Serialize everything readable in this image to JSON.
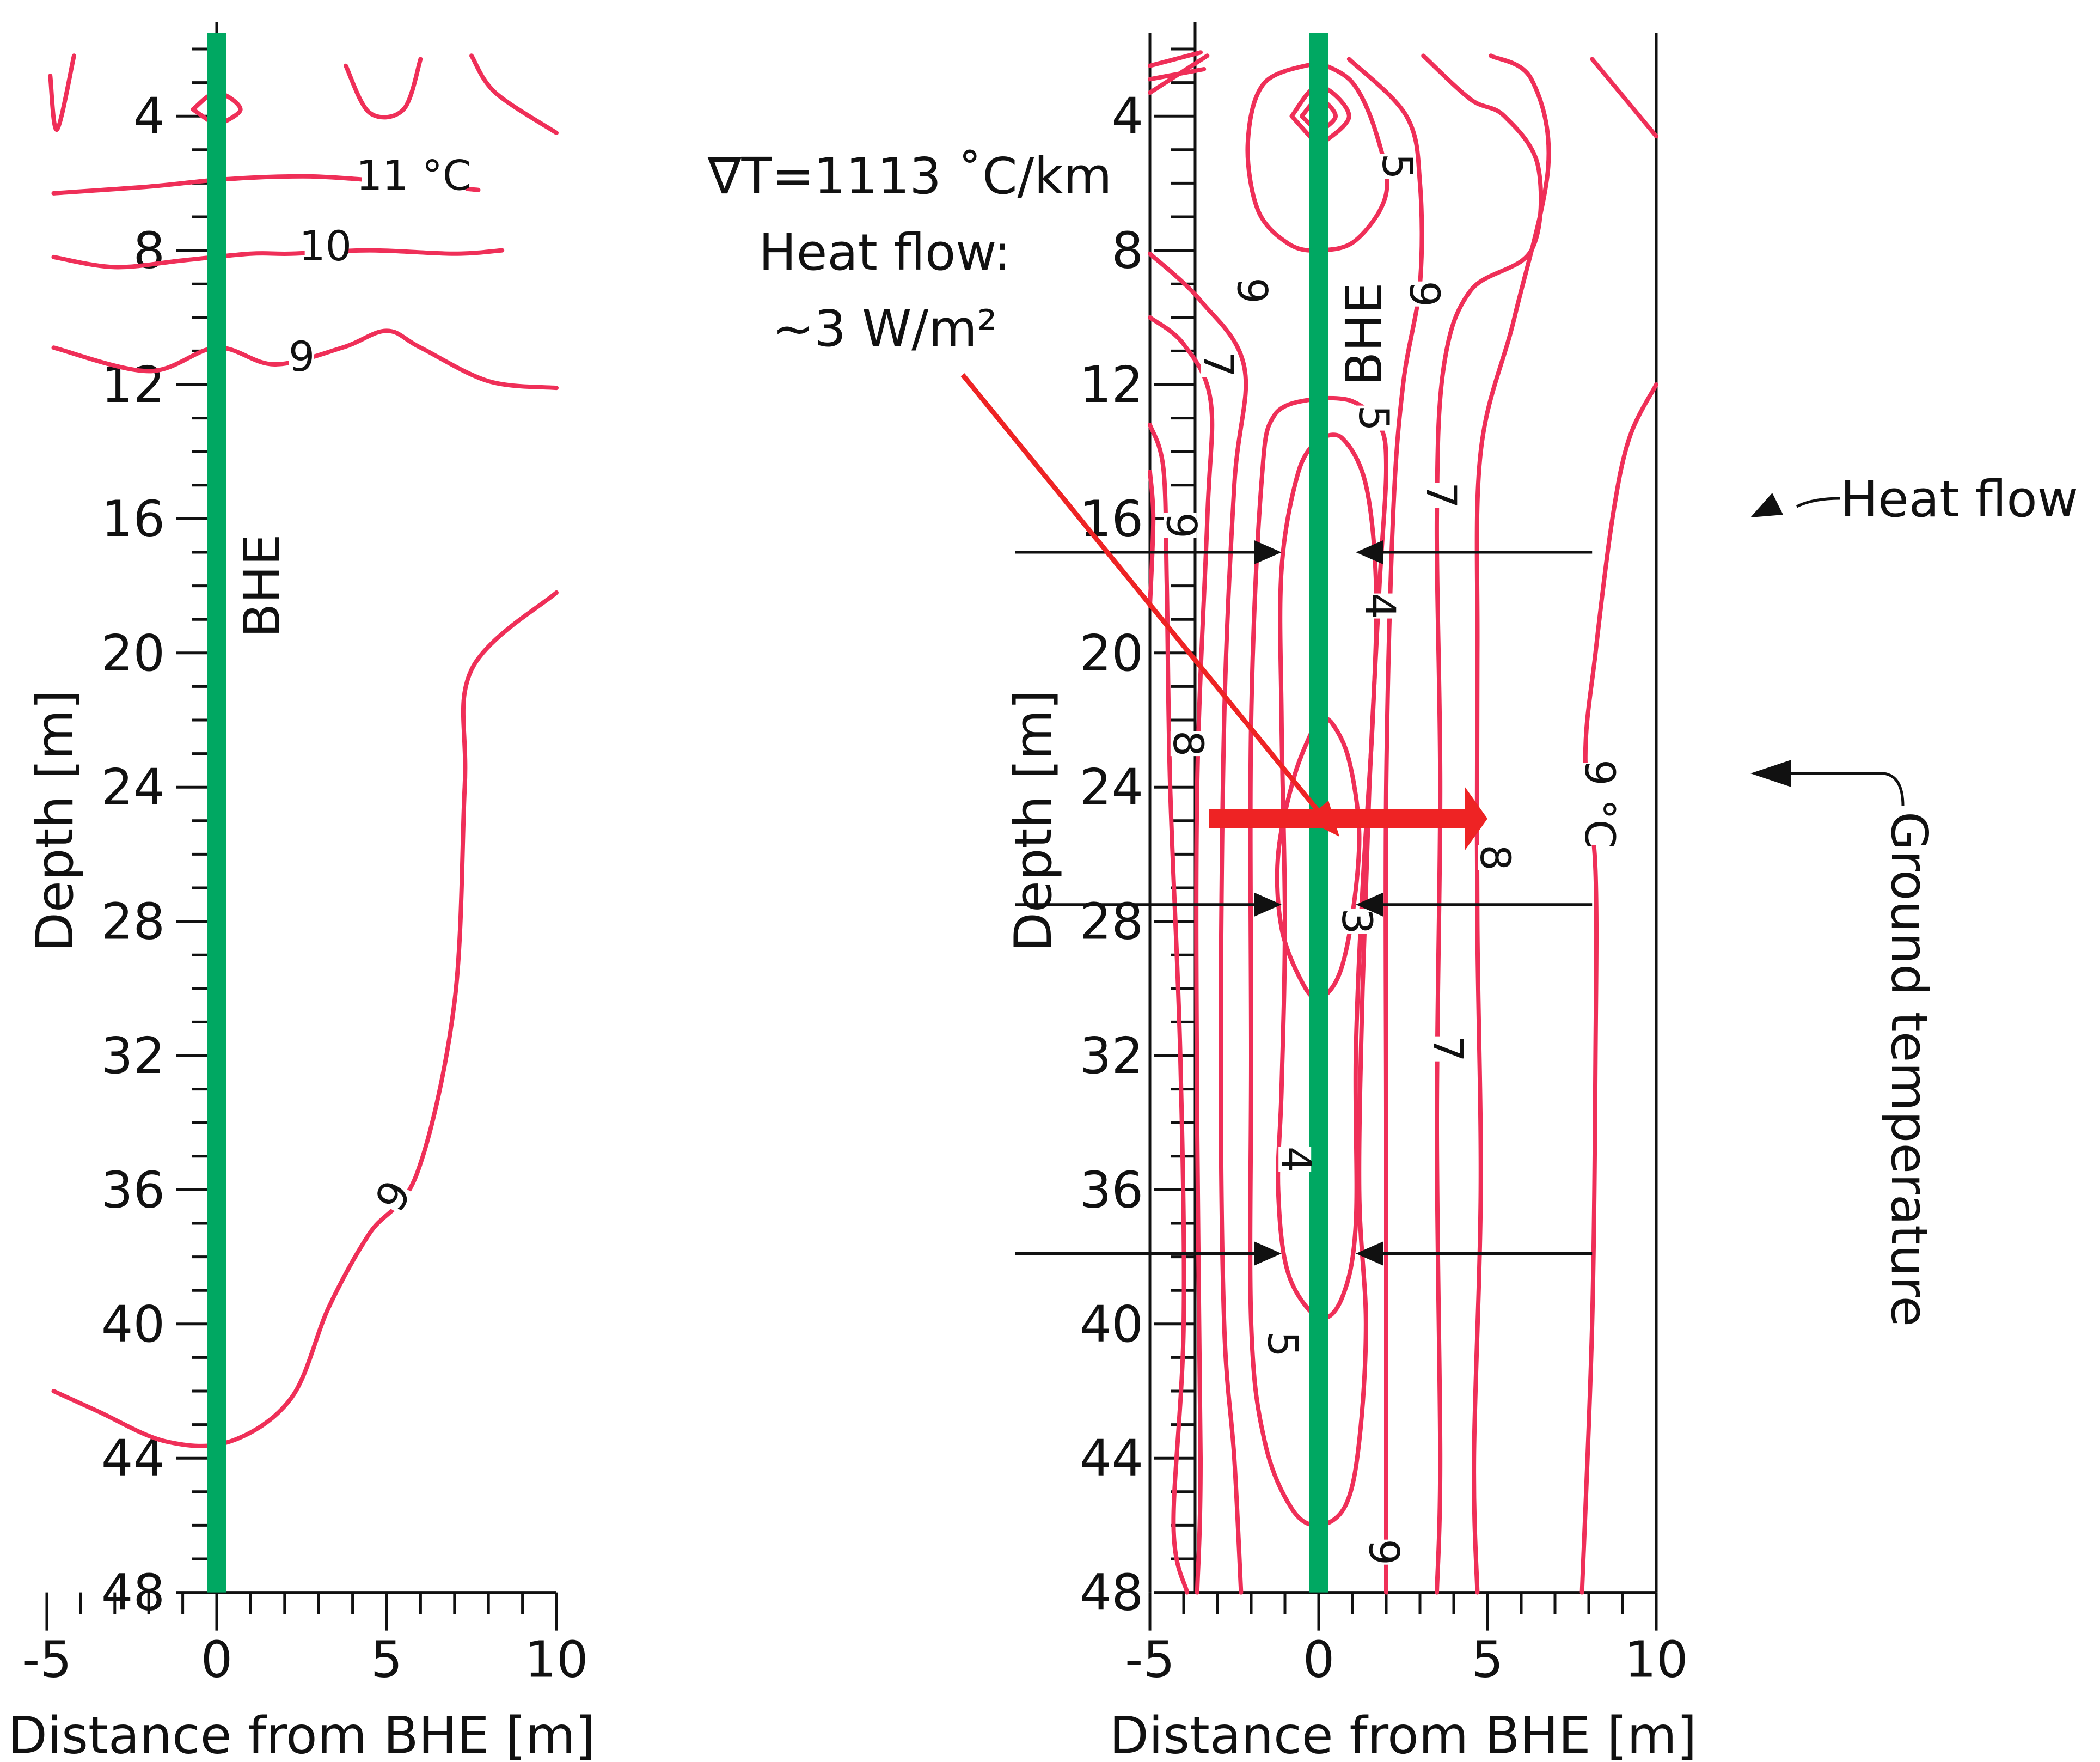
{
  "chart_data": [
    {
      "type": "contour",
      "panel": "left",
      "xlabel": "Distance from BHE [m]",
      "ylabel": "Depth [m]",
      "xlim": [
        -5,
        10
      ],
      "ylim": [
        48,
        2
      ],
      "x_ticks": [
        -5,
        0,
        5,
        10
      ],
      "y_ticks": [
        4,
        8,
        12,
        16,
        20,
        24,
        28,
        32,
        36,
        40,
        44,
        48
      ],
      "bhe_label": "BHE",
      "bhe_x": 0,
      "isotherm_labels": [
        {
          "text": "11 °C",
          "x": 5.8,
          "depth": 6.0
        },
        {
          "text": "10",
          "x": 3.2,
          "depth": 8.1
        },
        {
          "text": "9",
          "x": 2.5,
          "depth": 11.4
        },
        {
          "text": "9",
          "x": 5.4,
          "depth": 36.3
        }
      ],
      "isotherms": [
        {
          "value": 11,
          "label": "11 °C",
          "points": [
            [
              -4.8,
              6.3
            ],
            [
              -2,
              6.1
            ],
            [
              0,
              5.9
            ],
            [
              2,
              5.8
            ],
            [
              3.8,
              5.85
            ],
            [
              7.7,
              6.2
            ]
          ]
        },
        {
          "value": 10,
          "label": "10",
          "points": [
            [
              -4.8,
              8.2
            ],
            [
              -3,
              8.5
            ],
            [
              -1,
              8.3
            ],
            [
              1,
              8.1
            ],
            [
              2.2,
              8.1
            ],
            [
              4.5,
              8.0
            ],
            [
              7,
              8.1
            ],
            [
              8.4,
              8.0
            ]
          ]
        },
        {
          "value": 9,
          "label": "9",
          "points": [
            [
              -4.8,
              10.9
            ],
            [
              -2,
              11.6
            ],
            [
              0,
              10.9
            ],
            [
              1.7,
              11.4
            ],
            [
              3.7,
              10.9
            ],
            [
              5,
              10.4
            ],
            [
              6,
              10.9
            ],
            [
              8,
              11.9
            ],
            [
              10,
              12.1
            ]
          ]
        },
        {
          "value": 9,
          "label": "9",
          "points": [
            [
              -4.8,
              42.0
            ],
            [
              -3.5,
              42.6
            ],
            [
              -1.5,
              43.5
            ],
            [
              0.4,
              43.5
            ],
            [
              2.2,
              42.2
            ],
            [
              3.3,
              39.5
            ],
            [
              4.5,
              37.3
            ],
            [
              5.9,
              35.5
            ],
            [
              7,
              30.4
            ],
            [
              7.3,
              24
            ],
            [
              7.5,
              20.5
            ],
            [
              10,
              18.2
            ]
          ]
        },
        {
          "value": null,
          "label": "",
          "points": [
            [
              -4.9,
              2.8
            ],
            [
              -4.7,
              4.4
            ],
            [
              -4.2,
              2.2
            ]
          ]
        },
        {
          "value": null,
          "label": "",
          "points": [
            [
              3.8,
              2.5
            ],
            [
              4.5,
              3.9
            ],
            [
              5.5,
              3.8
            ],
            [
              6,
              2.3
            ]
          ]
        },
        {
          "value": null,
          "label": "",
          "points": [
            [
              7.5,
              2.2
            ],
            [
              8.2,
              3.3
            ],
            [
              10,
              4.5
            ]
          ]
        },
        {
          "value": null,
          "label": "",
          "closed": true,
          "points": [
            [
              -0.7,
              3.8
            ],
            [
              0,
              3.3
            ],
            [
              0.7,
              3.8
            ],
            [
              0,
              4.3
            ]
          ]
        }
      ]
    },
    {
      "type": "contour",
      "panel": "right",
      "xlabel": "Distance from BHE [m]",
      "ylabel": "Depth [m]",
      "xlim": [
        -5,
        10
      ],
      "ylim": [
        48,
        2
      ],
      "x_ticks": [
        -5,
        0,
        5,
        10
      ],
      "y_ticks": [
        4,
        8,
        12,
        16,
        20,
        24,
        28,
        32,
        36,
        40,
        44,
        48
      ],
      "bhe_label": "BHE",
      "bhe_x": 0,
      "isotherm_labels": [
        {
          "text": "5",
          "x": 2.1,
          "depth": 5.5
        },
        {
          "text": "9",
          "x": -2.2,
          "depth": 9.2
        },
        {
          "text": "9",
          "x": 2.9,
          "depth": 9.3
        },
        {
          "text": "7",
          "x": -3.2,
          "depth": 11.4
        },
        {
          "text": "5",
          "x": 1.4,
          "depth": 13.0
        },
        {
          "text": "7",
          "x": 3.4,
          "depth": 15.3
        },
        {
          "text": "9",
          "x": -4.3,
          "depth": 16.2
        },
        {
          "text": "4",
          "x": 1.6,
          "depth": 18.6
        },
        {
          "text": "8",
          "x": -4.1,
          "depth": 22.7
        },
        {
          "text": "9 °C",
          "x": 8.1,
          "depth": 24.5
        },
        {
          "text": "8",
          "x": 5.0,
          "depth": 26.1
        },
        {
          "text": "3",
          "x": 0.9,
          "depth": 28.0
        },
        {
          "text": "7",
          "x": 3.6,
          "depth": 31.8
        },
        {
          "text": "4",
          "x": -0.9,
          "depth": 35.1
        },
        {
          "text": "5",
          "x": -1.3,
          "depth": 40.6
        },
        {
          "text": "9",
          "x": 1.7,
          "depth": 46.8
        }
      ],
      "isotherms": [
        {
          "value": 3,
          "label": "3",
          "points": [
            [
              0,
              21.9
            ],
            [
              -0.7,
              23.6
            ],
            [
              -1.2,
              26.0
            ],
            [
              -1.1,
              28.2
            ],
            [
              -0.5,
              29.8
            ],
            [
              0,
              30.3
            ],
            [
              0.6,
              29.6
            ],
            [
              1.0,
              27.8
            ],
            [
              1.2,
              25.4
            ],
            [
              0.9,
              23.2
            ],
            [
              0.4,
              22.1
            ],
            [
              0,
              21.9
            ]
          ],
          "closed": true
        },
        {
          "value": 4,
          "label": "4",
          "points": [
            [
              0,
              13.6
            ],
            [
              -0.6,
              14.6
            ],
            [
              -1.1,
              17.5
            ],
            [
              -1.1,
              22
            ],
            [
              -1.0,
              28
            ],
            [
              -1.1,
              33
            ],
            [
              -1.2,
              36
            ],
            [
              -0.9,
              38.5
            ],
            [
              0,
              39.8
            ],
            [
              0.7,
              39.2
            ],
            [
              1.1,
              37
            ],
            [
              1.1,
              32
            ],
            [
              1.3,
              27
            ],
            [
              1.6,
              22
            ],
            [
              1.7,
              18
            ],
            [
              1.4,
              15
            ],
            [
              0.7,
              13.6
            ],
            [
              0,
              13.6
            ]
          ],
          "closed": true
        },
        {
          "value": 5,
          "label": "5",
          "points": [
            [
              0,
              12.4
            ],
            [
              -1.3,
              12.9
            ],
            [
              -1.7,
              15
            ],
            [
              -2.0,
              22
            ],
            [
              -2.0,
              32
            ],
            [
              -2.0,
              40
            ],
            [
              -1.6,
              43.5
            ],
            [
              -0.8,
              45.5
            ],
            [
              0,
              46.0
            ],
            [
              0.8,
              45.4
            ],
            [
              1.2,
              43.5
            ],
            [
              1.4,
              40
            ],
            [
              1.2,
              36
            ],
            [
              1.3,
              30
            ],
            [
              1.5,
              24
            ],
            [
              1.8,
              18
            ],
            [
              2.0,
              14.5
            ],
            [
              1.8,
              13.2
            ],
            [
              1.0,
              12.5
            ],
            [
              0,
              12.4
            ]
          ],
          "closed": true
        },
        {
          "value": 5,
          "label": "5",
          "points": [
            [
              0,
              2.4
            ],
            [
              -1.6,
              3.0
            ],
            [
              -2.1,
              4.8
            ],
            [
              -1.8,
              6.8
            ],
            [
              -0.9,
              7.8
            ],
            [
              0,
              8.0
            ],
            [
              1.1,
              7.7
            ],
            [
              2.0,
              6.3
            ],
            [
              1.7,
              4.5
            ],
            [
              1.0,
              3.0
            ],
            [
              0,
              2.4
            ]
          ],
          "closed": true
        },
        {
          "value": 6,
          "label": "6",
          "points": [
            [
              -5,
              8.1
            ],
            [
              -3.5,
              9.5
            ],
            [
              -2.2,
              11.5
            ],
            [
              -2.5,
              15
            ],
            [
              -2.8,
              22
            ],
            [
              -2.9,
              32
            ],
            [
              -2.8,
              40
            ],
            [
              -2.5,
              44
            ],
            [
              -2.3,
              48
            ]
          ]
        },
        {
          "value": 6,
          "label": "6",
          "points": [
            [
              0.9,
              2.3
            ],
            [
              2.6,
              4.0
            ],
            [
              3.0,
              6.0
            ],
            [
              3.0,
              9.0
            ],
            [
              2.5,
              12
            ],
            [
              2.2,
              16
            ],
            [
              2.0,
              24
            ],
            [
              2.0,
              34
            ],
            [
              2.0,
              42
            ],
            [
              2.0,
              48
            ]
          ]
        },
        {
          "value": 7,
          "label": "7",
          "points": [
            [
              -5,
              10.0
            ],
            [
              -4.0,
              10.8
            ],
            [
              -3.2,
              12.5
            ],
            [
              -3.3,
              16
            ],
            [
              -3.6,
              24
            ],
            [
              -3.6,
              34
            ],
            [
              -3.5,
              44
            ],
            [
              -3.6,
              48
            ]
          ]
        },
        {
          "value": 7,
          "label": "7",
          "points": [
            [
              3.1,
              2.2
            ],
            [
              4.5,
              3.5
            ],
            [
              5.5,
              4.0
            ],
            [
              6.5,
              5.5
            ],
            [
              6.3,
              8
            ],
            [
              4.5,
              9.2
            ],
            [
              3.7,
              11.5
            ],
            [
              3.5,
              16
            ],
            [
              3.6,
              24
            ],
            [
              3.5,
              34
            ],
            [
              3.6,
              44
            ],
            [
              3.5,
              48
            ]
          ]
        },
        {
          "value": 8,
          "label": "8",
          "points": [
            [
              -5,
              13.2
            ],
            [
              -4.6,
              14.5
            ],
            [
              -4.5,
              18
            ],
            [
              -4.4,
              24
            ],
            [
              -4.1,
              32
            ],
            [
              -4.0,
              40
            ],
            [
              -4.3,
              46
            ],
            [
              -3.9,
              48
            ]
          ]
        },
        {
          "value": 8,
          "label": "8",
          "points": [
            [
              5.1,
              2.2
            ],
            [
              6.3,
              2.9
            ],
            [
              6.8,
              5.5
            ],
            [
              5.8,
              10
            ],
            [
              4.8,
              14
            ],
            [
              4.7,
              20
            ],
            [
              4.7,
              28
            ],
            [
              4.8,
              36
            ],
            [
              4.6,
              44
            ],
            [
              4.7,
              48
            ]
          ]
        },
        {
          "value": 9,
          "label": "9 °C",
          "points": [
            [
              10,
              12.0
            ],
            [
              9.2,
              13.6
            ],
            [
              8.7,
              16
            ],
            [
              8.2,
              20
            ],
            [
              7.9,
              23.1
            ],
            [
              8.2,
              26.5
            ],
            [
              8.2,
              32
            ],
            [
              8.1,
              40
            ],
            [
              7.8,
              48
            ]
          ]
        },
        {
          "value": 9,
          "label": "9",
          "points": [
            [
              -5,
              14.6
            ],
            [
              -4.9,
              16
            ],
            [
              -5,
              18.6
            ]
          ]
        },
        {
          "value": null,
          "label": "",
          "points": [
            [
              -5,
              2.5
            ],
            [
              -3.5,
              2.1
            ]
          ]
        },
        {
          "value": null,
          "label": "",
          "points": [
            [
              -5,
              3.3
            ],
            [
              -3.3,
              2.2
            ]
          ]
        },
        {
          "value": null,
          "label": "",
          "points": [
            [
              -5,
              2.9
            ],
            [
              -3.4,
              2.6
            ]
          ]
        },
        {
          "value": null,
          "label": "",
          "points": [
            [
              8.1,
              2.3
            ],
            [
              10,
              4.6
            ]
          ]
        },
        {
          "value": null,
          "label": "",
          "closed": true,
          "points": [
            [
              -0.8,
              4.0
            ],
            [
              0,
              3.1
            ],
            [
              0.9,
              4.0
            ],
            [
              0,
              4.9
            ]
          ]
        },
        {
          "value": null,
          "label": "",
          "closed": true,
          "points": [
            [
              -0.5,
              4.0
            ],
            [
              0,
              3.5
            ],
            [
              0.5,
              4.0
            ],
            [
              0,
              4.5
            ]
          ]
        }
      ],
      "heat_flow_arrows": [
        {
          "depth": 17.0,
          "from_x": -9,
          "to_x": -1.1
        },
        {
          "depth": 17.0,
          "from_x": 8.1,
          "to_x": 1.1
        },
        {
          "depth": 27.5,
          "from_x": -9,
          "to_x": -1.1
        },
        {
          "depth": 27.5,
          "from_x": 8.1,
          "to_x": 1.1
        },
        {
          "depth": 37.9,
          "from_x": -9,
          "to_x": -1.1
        },
        {
          "depth": 37.9,
          "from_x": 8.1,
          "to_x": 1.1
        }
      ]
    }
  ],
  "annotations": {
    "gradient": "∇T=1113 ˚C/km",
    "heat_flow_title": "Heat flow:",
    "heat_flow_value": "~3 W/m²",
    "heat_flow_label": "Heat flow",
    "ground_temperature_label": "Ground temperature"
  },
  "colors": {
    "isotherm": "#ef2f58",
    "bhe": "#00a862",
    "big_arrow": "#ee2324",
    "axis": "#111111"
  }
}
